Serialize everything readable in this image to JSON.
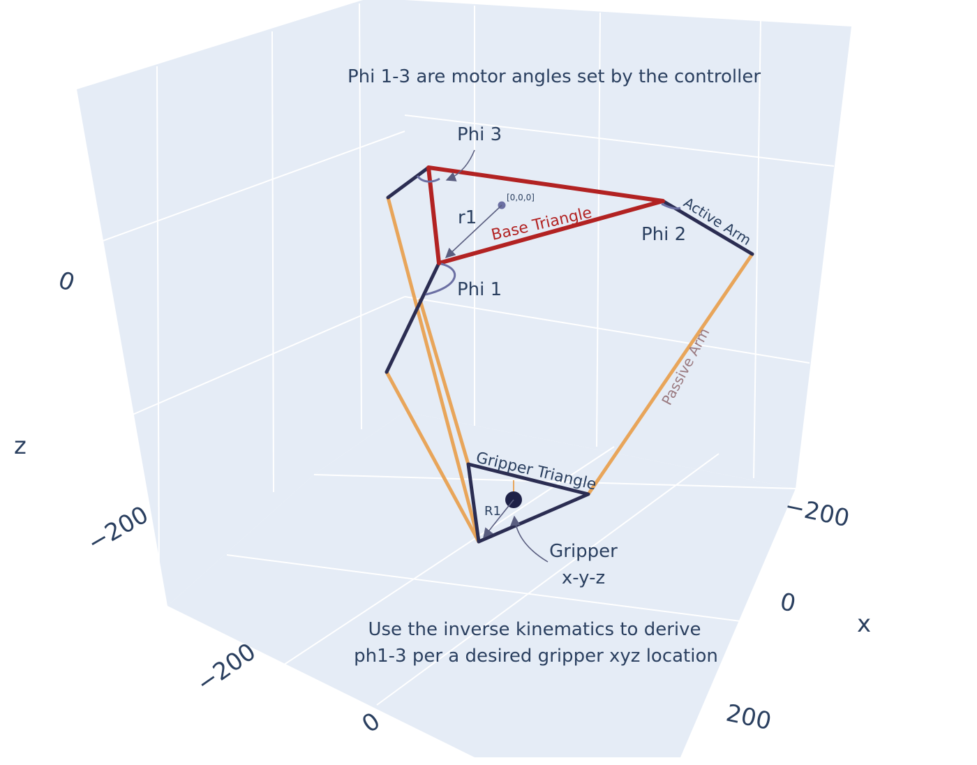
{
  "annotations": {
    "top_note": "Phi 1-3 are motor angles set by the controller",
    "bottom_note_line1": "Use the inverse kinematics to derive",
    "bottom_note_line2": "ph1-3 per a desired gripper xyz location",
    "phi1": "Phi 1",
    "phi2": "Phi 2",
    "phi3": "Phi 3",
    "r1": "r1",
    "R1": "R1",
    "origin": "[0,0,0]",
    "base_triangle": "Base Triangle",
    "gripper_triangle": "Gripper Triangle",
    "active_arm": "Active Arm",
    "passive_arm": "Passive Arm",
    "gripper_line1": "Gripper",
    "gripper_line2": "x-y-z"
  },
  "axes": {
    "z_title": "z",
    "x_title": "x",
    "z_ticks": [
      "0",
      "−200"
    ],
    "x_ticks": [
      "−200",
      "0",
      "200"
    ],
    "y_ticks": [
      "−200",
      "0"
    ]
  },
  "colors": {
    "background": "#e5ecf6",
    "base_triangle": "#b22222",
    "active_arm": "#2b2d52",
    "passive_arm": "#e8a55a",
    "base_triangle_label": "#b22222",
    "passive_arm_label": "#9a7a80"
  }
}
